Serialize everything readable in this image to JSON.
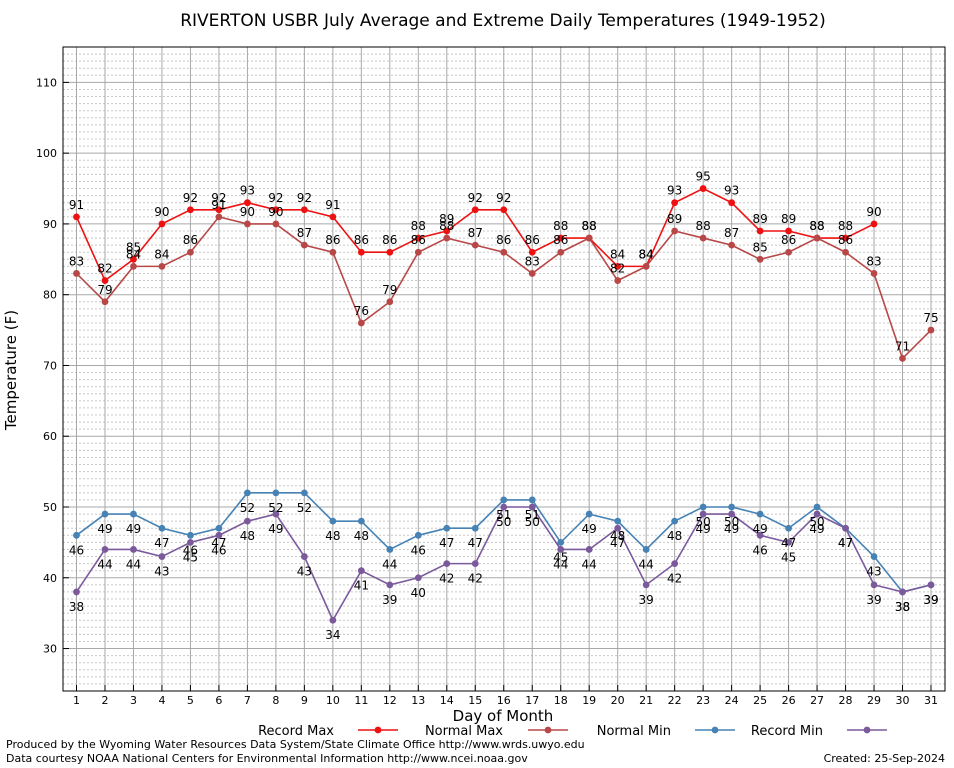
{
  "chart_data": {
    "type": "line",
    "title": "RIVERTON USBR July Average and Extreme Daily Temperatures (1949-1952)",
    "xlabel": "Day of Month",
    "ylabel": "Temperature (F)",
    "xlim": [
      1,
      31
    ],
    "ylim": [
      24,
      115
    ],
    "yticks": [
      30,
      40,
      50,
      60,
      70,
      80,
      90,
      100,
      110
    ],
    "x": [
      1,
      2,
      3,
      4,
      5,
      6,
      7,
      8,
      9,
      10,
      11,
      12,
      13,
      14,
      15,
      16,
      17,
      18,
      19,
      20,
      21,
      22,
      23,
      24,
      25,
      26,
      27,
      28,
      29,
      30,
      31
    ],
    "grid": true,
    "legend_position": "bottom",
    "series": [
      {
        "name": "Record Max",
        "color": "#ee1111",
        "values": [
          91,
          82,
          85,
          90,
          92,
          92,
          93,
          92,
          92,
          91,
          86,
          86,
          88,
          89,
          92,
          92,
          86,
          88,
          88,
          84,
          84,
          93,
          95,
          93,
          89,
          89,
          88,
          88,
          90,
          null,
          null
        ]
      },
      {
        "name": "Normal Max",
        "color": "#b84848",
        "values": [
          83,
          79,
          84,
          84,
          86,
          91,
          90,
          90,
          87,
          86,
          76,
          79,
          86,
          88,
          87,
          86,
          83,
          86,
          88,
          82,
          84,
          89,
          88,
          87,
          85,
          86,
          88,
          86,
          83,
          71,
          75
        ]
      },
      {
        "name": "Normal Min",
        "color": "#4682b4",
        "values": [
          46,
          49,
          49,
          47,
          46,
          47,
          52,
          52,
          52,
          48,
          48,
          44,
          46,
          47,
          47,
          51,
          51,
          45,
          49,
          48,
          44,
          48,
          50,
          50,
          49,
          47,
          50,
          47,
          43,
          38,
          39
        ]
      },
      {
        "name": "Record Min",
        "color": "#7b5a9c",
        "values": [
          38,
          44,
          44,
          43,
          45,
          46,
          48,
          49,
          43,
          34,
          41,
          39,
          40,
          42,
          42,
          50,
          50,
          44,
          44,
          47,
          39,
          42,
          49,
          49,
          46,
          45,
          49,
          47,
          39,
          38,
          39
        ]
      }
    ]
  },
  "footer": {
    "left_line1": "Produced by the Wyoming Water Resources Data System/State Climate Office http://www.wrds.uwyo.edu",
    "left_line2": "Data courtesy NOAA National Centers for Environmental Information http://www.ncei.noaa.gov",
    "created": "Created:  25-Sep-2024"
  }
}
